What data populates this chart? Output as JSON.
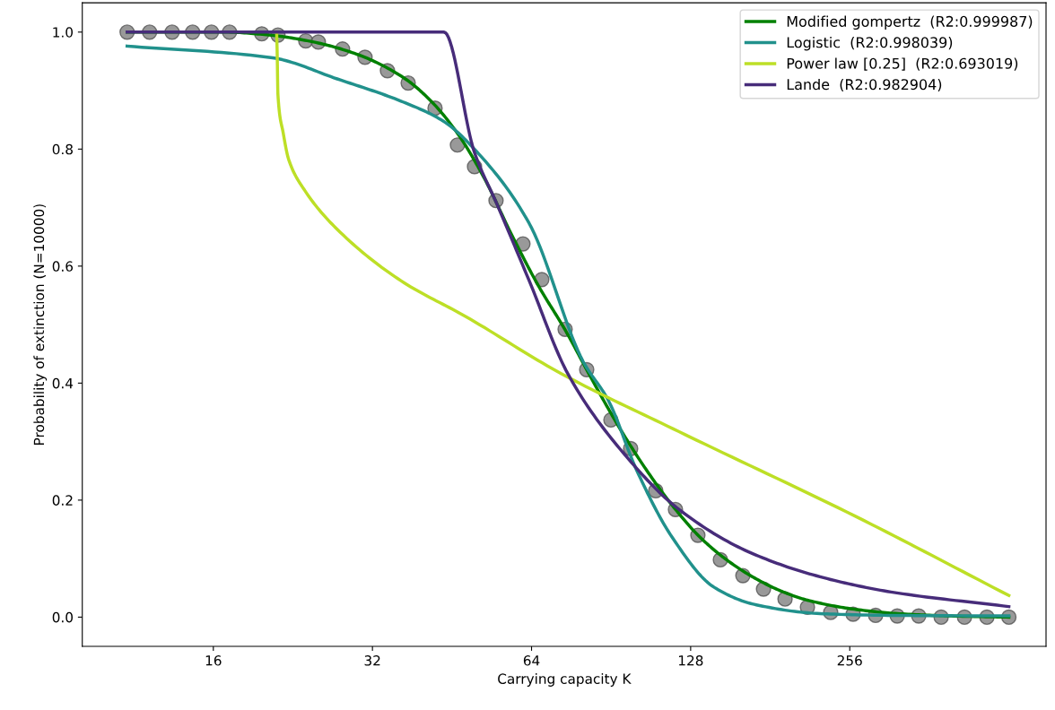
{
  "chart_data": {
    "type": "line",
    "xlabel": "Carrying capacity K",
    "ylabel": "Probability of extinction (N=10000)",
    "log": "x",
    "xlim": [
      9.04,
      602
    ],
    "xticks": [
      16,
      32,
      64,
      128,
      256
    ],
    "ylim": [
      -0.05,
      1.05
    ],
    "yticks": [
      {
        "value": 0,
        "label": "0.0"
      },
      0.2,
      0.4,
      0.6,
      0.8,
      {
        "value": 1,
        "label": "1.0"
      }
    ],
    "grid": false,
    "legend": "top right",
    "line_style": "solid",
    "series": [
      {
        "type": "scatter",
        "marker": "circle",
        "color": "#808080",
        "x": [
          10.99,
          12.12,
          13.37,
          14.62,
          15.87,
          17.17,
          19.76,
          21.2,
          23.93,
          25.28,
          28.09,
          30.98,
          34.16,
          37.39,
          42.03,
          46.34,
          49.92,
          54.82,
          61.64,
          66.92,
          74.08,
          81.38,
          90.43,
          98.54,
          109.95,
          119.8,
          132.1,
          145.7,
          160.7,
          175.8,
          193.1,
          212.9,
          235.6,
          259.8,
          286.5,
          314.8,
          345.7,
          381.2,
          422.0,
          465.3,
          512
        ],
        "values": [
          1.0,
          1.0,
          1.0,
          1.0,
          1.0,
          1.0,
          0.997,
          0.995,
          0.985,
          0.983,
          0.971,
          0.957,
          0.934,
          0.913,
          0.87,
          0.807,
          0.77,
          0.712,
          0.638,
          0.577,
          0.492,
          0.423,
          0.337,
          0.288,
          0.216,
          0.184,
          0.14,
          0.098,
          0.071,
          0.048,
          0.031,
          0.017,
          0.008,
          0.005,
          0.003,
          0.002,
          0.002,
          0.0,
          0.0,
          0.0,
          0.0
        ]
      },
      {
        "name": "Modified gompertz  (R2:0.999987)",
        "color": "#008000",
        "x": [
          10.99,
          16.77,
          20.39,
          24.79,
          30.14,
          36.66,
          41.21,
          46.34,
          52.11,
          58.59,
          65.88,
          74.08,
          83.31,
          93.67,
          105.3,
          118.4,
          133.2,
          149.7,
          168.3,
          189.3,
          212.9,
          258.8,
          314.8,
          397.9,
          512
        ],
        "values": [
          1.0,
          1.0,
          0.995,
          0.983,
          0.961,
          0.922,
          0.883,
          0.827,
          0.75,
          0.655,
          0.567,
          0.491,
          0.406,
          0.325,
          0.253,
          0.19,
          0.137,
          0.098,
          0.068,
          0.045,
          0.029,
          0.014,
          0.006,
          0.002,
          0.0
        ]
      },
      {
        "name": "Logistic  (R2:0.998039)",
        "color": "#21918c",
        "x": [
          10.99,
          20.71,
          27.44,
          36.23,
          43.54,
          51.3,
          63.35,
          80.12,
          89.36,
          101.3,
          118.0,
          141.8,
          170.4,
          224.9,
          306.3,
          512
        ],
        "values": [
          0.976,
          0.956,
          0.92,
          0.882,
          0.848,
          0.788,
          0.673,
          0.437,
          0.371,
          0.25,
          0.137,
          0.051,
          0.021,
          0.006,
          0.003,
          0.002
        ]
      },
      {
        "name": "Power law [0.25]  (R2:0.693019)",
        "color": "#bddf26",
        "x": [
          21.08,
          21.13,
          21.2,
          21.7,
          22.22,
          23.84,
          27.44,
          36.23,
          48.0,
          72.93,
          121.7,
          262.9,
          512
        ],
        "values": [
          1.0,
          0.965,
          0.893,
          0.827,
          0.782,
          0.729,
          0.663,
          0.575,
          0.514,
          0.416,
          0.317,
          0.172,
          0.037
        ]
      },
      {
        "name": "Lande  (R2:0.982904)",
        "color": "#472c7a",
        "x": [
          10.99,
          43.71,
          49.92,
          55.04,
          63.35,
          74.96,
          96.64,
          121.7,
          164.4,
          224.9,
          306.3,
          512
        ],
        "values": [
          1.0,
          1.0,
          0.794,
          0.706,
          0.575,
          0.416,
          0.275,
          0.184,
          0.112,
          0.069,
          0.043,
          0.018
        ]
      }
    ]
  }
}
